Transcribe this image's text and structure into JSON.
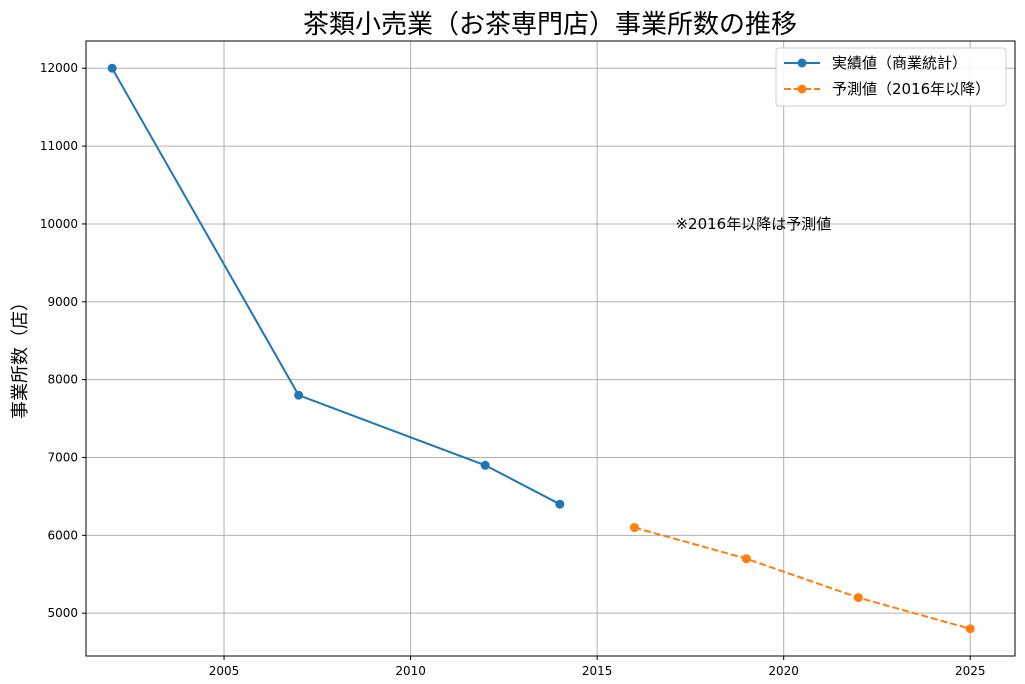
{
  "chart_data": {
    "type": "line",
    "title": "茶類小売業（お茶専門店）事業所数の推移",
    "xlabel": "",
    "ylabel": "事業所数（店）",
    "xlim": [
      2001.3,
      2026.2
    ],
    "ylim": [
      4450,
      12350
    ],
    "xticks": [
      2005,
      2010,
      2015,
      2020,
      2025
    ],
    "yticks": [
      5000,
      6000,
      7000,
      8000,
      9000,
      10000,
      11000,
      12000
    ],
    "grid": true,
    "legend_position": "top-right",
    "series": [
      {
        "name": "実績値（商業統計）",
        "color": "#1f77b4",
        "line_style": "solid",
        "marker": "circle",
        "x": [
          2002,
          2007,
          2012,
          2014
        ],
        "y": [
          12000,
          7800,
          6900,
          6400
        ]
      },
      {
        "name": "予測値（2016年以降）",
        "color": "#ff7f0e",
        "line_style": "dashed",
        "marker": "circle",
        "x": [
          2016,
          2019,
          2022,
          2025
        ],
        "y": [
          6100,
          5700,
          5200,
          4800
        ]
      }
    ],
    "annotations": [
      {
        "text": "※2016年以降は予測値",
        "x": 2017.1,
        "y": 10000
      }
    ]
  }
}
